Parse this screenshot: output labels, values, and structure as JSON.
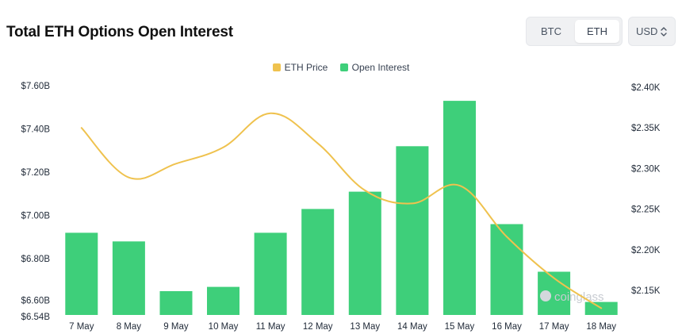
{
  "header": {
    "title": "Total ETH Options Open Interest",
    "asset_toggle": [
      "BTC",
      "ETH"
    ],
    "asset_selected": "ETH",
    "currency": "USD",
    "currency_icon": "up-down-chevron-icon"
  },
  "watermark": "coinglass",
  "colors": {
    "bar": "#3ecf7a",
    "line": "#efc24e",
    "grid": "#eef0f3"
  },
  "chart_data": {
    "type": "bar",
    "categories": [
      "7 May",
      "8 May",
      "9 May",
      "10 May",
      "11 May",
      "12 May",
      "13 May",
      "14 May",
      "15 May",
      "16 May",
      "17 May",
      "18 May"
    ],
    "series": [
      {
        "name": "Open Interest",
        "type": "bar",
        "axis": "left",
        "values": [
          6.92,
          6.88,
          6.65,
          6.67,
          6.92,
          7.03,
          7.11,
          7.32,
          7.53,
          6.96,
          6.74,
          6.6
        ]
      },
      {
        "name": "ETH Price",
        "type": "line",
        "axis": "right",
        "values": [
          2.35,
          2.289,
          2.306,
          2.326,
          2.368,
          2.331,
          2.273,
          2.257,
          2.279,
          2.216,
          2.165,
          2.128
        ]
      }
    ],
    "y_left": {
      "ticks": [
        "$7.60B",
        "$7.40B",
        "$7.20B",
        "$7.00B",
        "$6.80B",
        "$6.60B",
        "$6.54B"
      ],
      "tick_values": [
        7.6,
        7.4,
        7.2,
        7.0,
        6.8,
        6.6,
        6.54
      ],
      "range": [
        6.54,
        7.6
      ]
    },
    "y_right": {
      "ticks": [
        "$2.40K",
        "$2.35K",
        "$2.30K",
        "$2.25K",
        "$2.20K",
        "$2.15K"
      ],
      "tick_values": [
        2.4,
        2.35,
        2.3,
        2.25,
        2.2,
        2.15
      ],
      "range": [
        2.12,
        2.4
      ]
    },
    "legend": [
      "ETH Price",
      "Open Interest"
    ],
    "legend_position": "top-center",
    "grid": false
  }
}
